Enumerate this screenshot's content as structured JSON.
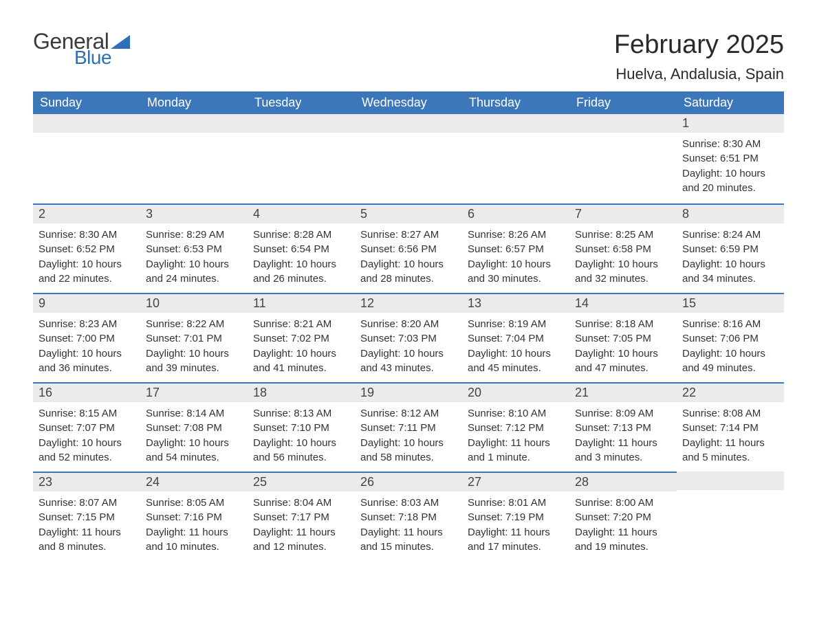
{
  "logo": {
    "text_general": "General",
    "text_blue": "Blue",
    "triangle_color": "#2e6fb6"
  },
  "header": {
    "month_title": "February 2025",
    "location": "Huelva, Andalusia, Spain"
  },
  "colors": {
    "header_bg": "#3c78b9",
    "header_text": "#ffffff",
    "daynum_bg": "#ebebeb",
    "border_top": "#3c78b9",
    "body_text": "#333333",
    "page_bg": "#ffffff"
  },
  "typography": {
    "month_title_fontsize": 38,
    "location_fontsize": 22,
    "header_fontsize": 18,
    "daynum_fontsize": 18,
    "content_fontsize": 15
  },
  "weekdays": [
    "Sunday",
    "Monday",
    "Tuesday",
    "Wednesday",
    "Thursday",
    "Friday",
    "Saturday"
  ],
  "weeks": [
    [
      null,
      null,
      null,
      null,
      null,
      null,
      {
        "day": "1",
        "sunrise": "Sunrise: 8:30 AM",
        "sunset": "Sunset: 6:51 PM",
        "daylight": "Daylight: 10 hours and 20 minutes."
      }
    ],
    [
      {
        "day": "2",
        "sunrise": "Sunrise: 8:30 AM",
        "sunset": "Sunset: 6:52 PM",
        "daylight": "Daylight: 10 hours and 22 minutes."
      },
      {
        "day": "3",
        "sunrise": "Sunrise: 8:29 AM",
        "sunset": "Sunset: 6:53 PM",
        "daylight": "Daylight: 10 hours and 24 minutes."
      },
      {
        "day": "4",
        "sunrise": "Sunrise: 8:28 AM",
        "sunset": "Sunset: 6:54 PM",
        "daylight": "Daylight: 10 hours and 26 minutes."
      },
      {
        "day": "5",
        "sunrise": "Sunrise: 8:27 AM",
        "sunset": "Sunset: 6:56 PM",
        "daylight": "Daylight: 10 hours and 28 minutes."
      },
      {
        "day": "6",
        "sunrise": "Sunrise: 8:26 AM",
        "sunset": "Sunset: 6:57 PM",
        "daylight": "Daylight: 10 hours and 30 minutes."
      },
      {
        "day": "7",
        "sunrise": "Sunrise: 8:25 AM",
        "sunset": "Sunset: 6:58 PM",
        "daylight": "Daylight: 10 hours and 32 minutes."
      },
      {
        "day": "8",
        "sunrise": "Sunrise: 8:24 AM",
        "sunset": "Sunset: 6:59 PM",
        "daylight": "Daylight: 10 hours and 34 minutes."
      }
    ],
    [
      {
        "day": "9",
        "sunrise": "Sunrise: 8:23 AM",
        "sunset": "Sunset: 7:00 PM",
        "daylight": "Daylight: 10 hours and 36 minutes."
      },
      {
        "day": "10",
        "sunrise": "Sunrise: 8:22 AM",
        "sunset": "Sunset: 7:01 PM",
        "daylight": "Daylight: 10 hours and 39 minutes."
      },
      {
        "day": "11",
        "sunrise": "Sunrise: 8:21 AM",
        "sunset": "Sunset: 7:02 PM",
        "daylight": "Daylight: 10 hours and 41 minutes."
      },
      {
        "day": "12",
        "sunrise": "Sunrise: 8:20 AM",
        "sunset": "Sunset: 7:03 PM",
        "daylight": "Daylight: 10 hours and 43 minutes."
      },
      {
        "day": "13",
        "sunrise": "Sunrise: 8:19 AM",
        "sunset": "Sunset: 7:04 PM",
        "daylight": "Daylight: 10 hours and 45 minutes."
      },
      {
        "day": "14",
        "sunrise": "Sunrise: 8:18 AM",
        "sunset": "Sunset: 7:05 PM",
        "daylight": "Daylight: 10 hours and 47 minutes."
      },
      {
        "day": "15",
        "sunrise": "Sunrise: 8:16 AM",
        "sunset": "Sunset: 7:06 PM",
        "daylight": "Daylight: 10 hours and 49 minutes."
      }
    ],
    [
      {
        "day": "16",
        "sunrise": "Sunrise: 8:15 AM",
        "sunset": "Sunset: 7:07 PM",
        "daylight": "Daylight: 10 hours and 52 minutes."
      },
      {
        "day": "17",
        "sunrise": "Sunrise: 8:14 AM",
        "sunset": "Sunset: 7:08 PM",
        "daylight": "Daylight: 10 hours and 54 minutes."
      },
      {
        "day": "18",
        "sunrise": "Sunrise: 8:13 AM",
        "sunset": "Sunset: 7:10 PM",
        "daylight": "Daylight: 10 hours and 56 minutes."
      },
      {
        "day": "19",
        "sunrise": "Sunrise: 8:12 AM",
        "sunset": "Sunset: 7:11 PM",
        "daylight": "Daylight: 10 hours and 58 minutes."
      },
      {
        "day": "20",
        "sunrise": "Sunrise: 8:10 AM",
        "sunset": "Sunset: 7:12 PM",
        "daylight": "Daylight: 11 hours and 1 minute."
      },
      {
        "day": "21",
        "sunrise": "Sunrise: 8:09 AM",
        "sunset": "Sunset: 7:13 PM",
        "daylight": "Daylight: 11 hours and 3 minutes."
      },
      {
        "day": "22",
        "sunrise": "Sunrise: 8:08 AM",
        "sunset": "Sunset: 7:14 PM",
        "daylight": "Daylight: 11 hours and 5 minutes."
      }
    ],
    [
      {
        "day": "23",
        "sunrise": "Sunrise: 8:07 AM",
        "sunset": "Sunset: 7:15 PM",
        "daylight": "Daylight: 11 hours and 8 minutes."
      },
      {
        "day": "24",
        "sunrise": "Sunrise: 8:05 AM",
        "sunset": "Sunset: 7:16 PM",
        "daylight": "Daylight: 11 hours and 10 minutes."
      },
      {
        "day": "25",
        "sunrise": "Sunrise: 8:04 AM",
        "sunset": "Sunset: 7:17 PM",
        "daylight": "Daylight: 11 hours and 12 minutes."
      },
      {
        "day": "26",
        "sunrise": "Sunrise: 8:03 AM",
        "sunset": "Sunset: 7:18 PM",
        "daylight": "Daylight: 11 hours and 15 minutes."
      },
      {
        "day": "27",
        "sunrise": "Sunrise: 8:01 AM",
        "sunset": "Sunset: 7:19 PM",
        "daylight": "Daylight: 11 hours and 17 minutes."
      },
      {
        "day": "28",
        "sunrise": "Sunrise: 8:00 AM",
        "sunset": "Sunset: 7:20 PM",
        "daylight": "Daylight: 11 hours and 19 minutes."
      },
      null
    ]
  ]
}
